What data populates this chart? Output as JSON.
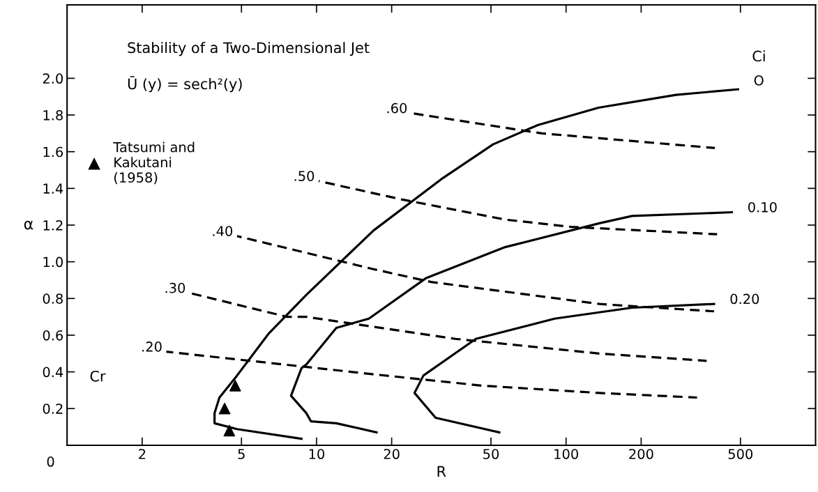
{
  "chart_data": {
    "type": "line",
    "title": "Stability of a Two-Dimensional Jet",
    "subtitle": "Ū (y) = sech²(y)",
    "xlabel": "R",
    "ylabel": "α",
    "log": "x",
    "legend": "left",
    "marker": "none",
    "xlim": [
      1,
      1000
    ],
    "xticks": [
      2,
      5,
      10,
      20,
      50,
      100,
      200,
      500
    ],
    "ylim": [
      0,
      2.4
    ],
    "yticks": [
      {
        "value": 0.2,
        "label": "0.2"
      },
      {
        "value": 0.4,
        "label": "0.4"
      },
      {
        "value": 0.6,
        "label": "0.6"
      },
      {
        "value": 0.8,
        "label": "0.8"
      },
      {
        "value": 1.0,
        "label": "1.0"
      },
      {
        "value": 1.2,
        "label": "1.2"
      },
      {
        "value": 1.4,
        "label": "1.4"
      },
      {
        "value": 1.6,
        "label": "1.6"
      },
      {
        "value": 1.8,
        "label": "1.8"
      },
      {
        "value": 2.0,
        "label": "2.0"
      }
    ],
    "annotations": [
      "Ci",
      "Cr",
      "0"
    ],
    "series": [
      {
        "name": "O",
        "color": "#000000",
        "line_style": "solid",
        "x": [
          8.7,
          4.8,
          3.9,
          3.9,
          4.08,
          4.8,
          6.44,
          9.1,
          16.9,
          31.6,
          51,
          77,
          135,
          276,
          489
        ],
        "values": [
          0.035,
          0.088,
          0.12,
          0.175,
          0.26,
          0.38,
          0.61,
          0.82,
          1.17,
          1.45,
          1.64,
          1.745,
          1.84,
          1.91,
          1.94
        ]
      },
      {
        "name": "0.10",
        "color": "#000000",
        "line_style": "solid",
        "x": [
          17.4,
          12.0,
          9.5,
          9.1,
          7.9,
          8.7,
          9.1,
          12.0,
          16.2,
          27.4,
          57,
          136,
          184,
          462
        ],
        "values": [
          0.07,
          0.12,
          0.13,
          0.175,
          0.27,
          0.42,
          0.44,
          0.64,
          0.69,
          0.91,
          1.08,
          1.21,
          1.25,
          1.27
        ]
      },
      {
        "name": "0.20",
        "color": "#000000",
        "line_style": "solid",
        "x": [
          54,
          30,
          24.7,
          26.8,
          43.5,
          90,
          184,
          392
        ],
        "values": [
          0.07,
          0.15,
          0.285,
          0.38,
          0.58,
          0.69,
          0.75,
          0.77
        ]
      },
      {
        "name": ".60",
        "color": "#000000",
        "line_style": "dashed",
        "x": [
          24,
          64,
          80,
          395
        ],
        "values": [
          1.81,
          1.72,
          1.7,
          1.62
        ]
      },
      {
        "name": ".50",
        "color": "#000000",
        "line_style": "dashed",
        "x": [
          10.2,
          21.9,
          57,
          105,
          403
        ],
        "values": [
          1.44,
          1.34,
          1.23,
          1.19,
          1.15
        ]
      },
      {
        "name": ".40",
        "color": "#000000",
        "line_style": "dashed",
        "x": [
          4.8,
          16.9,
          28.8,
          136,
          175,
          392
        ],
        "values": [
          1.14,
          0.96,
          0.89,
          0.77,
          0.76,
          0.73
        ]
      },
      {
        "name": ".30",
        "color": "#000000",
        "line_style": "dashed",
        "x": [
          3.1,
          7.6,
          9.1,
          36,
          136,
          366
        ],
        "values": [
          0.83,
          0.7,
          0.7,
          0.58,
          0.5,
          0.46
        ]
      },
      {
        "name": ".20",
        "color": "#000000",
        "line_style": "dashed",
        "x": [
          2.5,
          17.4,
          46,
          136,
          335
        ],
        "values": [
          0.51,
          0.385,
          0.325,
          0.285,
          0.26
        ]
      },
      {
        "name": "Tatsumi and\nKakutani\n(1958)",
        "type": "scatter",
        "marker": "triangle",
        "color": "#000000",
        "x": [
          4.72,
          4.28,
          4.47
        ],
        "values": [
          0.325,
          0.2,
          0.08
        ]
      }
    ]
  }
}
